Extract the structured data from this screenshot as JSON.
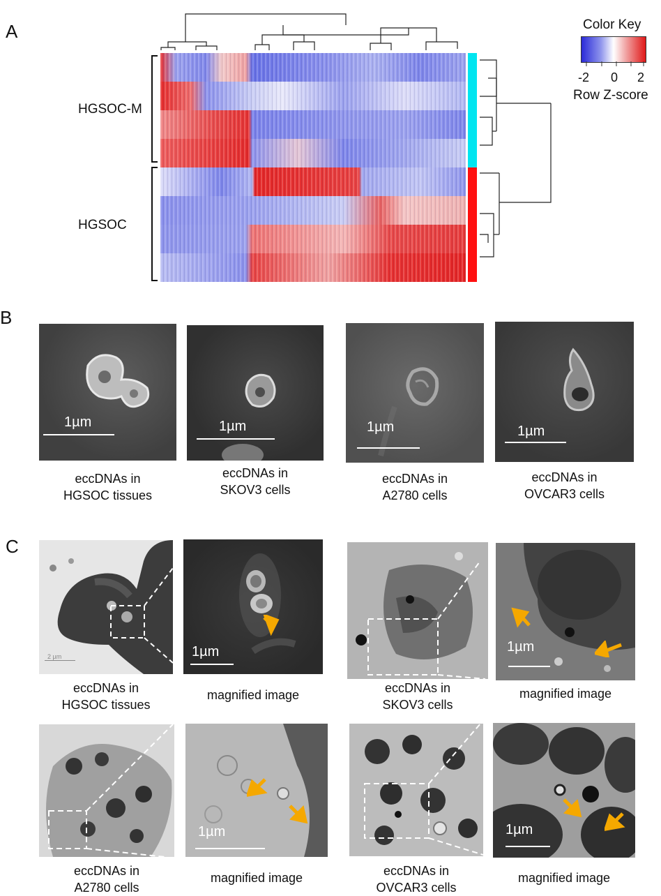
{
  "panels": {
    "a": {
      "letter": "A",
      "group_labels": [
        "HGSOC-M",
        "HGSOC"
      ],
      "color_key": {
        "title": "Color Key",
        "ticks": [
          "-2",
          "0",
          "2"
        ],
        "label": "Row Z-score",
        "low_color": "#2020d0",
        "mid_color": "#ffffff",
        "high_color": "#e01010"
      },
      "group_colors": [
        "#00e5f0",
        "#ff1010"
      ]
    },
    "b": {
      "letter": "B",
      "images": [
        {
          "scale": "1µm",
          "caption_1": "eccDNAs in",
          "caption_2": "HGSOC tissues"
        },
        {
          "scale": "1µm",
          "caption_1": "eccDNAs in",
          "caption_2": "SKOV3 cells"
        },
        {
          "scale": "1µm",
          "caption_1": "eccDNAs in",
          "caption_2": "A2780 cells"
        },
        {
          "scale": "1µm",
          "caption_1": "eccDNAs in",
          "caption_2": "OVCAR3 cells"
        }
      ]
    },
    "c": {
      "letter": "C",
      "overview_scale": "2 µm",
      "images": [
        {
          "caption_1": "eccDNAs in",
          "caption_2": "HGSOC tissues"
        },
        {
          "scale": "1µm",
          "caption": "magnified image"
        },
        {
          "caption_1": "eccDNAs in",
          "caption_2": "SKOV3 cells"
        },
        {
          "scale": "1µm",
          "caption": "magnified image"
        },
        {
          "caption_1": "eccDNAs in",
          "caption_2": "A2780 cells"
        },
        {
          "scale": "1µm",
          "caption": "magnified image"
        },
        {
          "caption_1": "eccDNAs in",
          "caption_2": "OVCAR3 cells"
        },
        {
          "scale": "1µm",
          "caption": "magnified image"
        }
      ],
      "arrow_color": "#f5a800"
    }
  }
}
